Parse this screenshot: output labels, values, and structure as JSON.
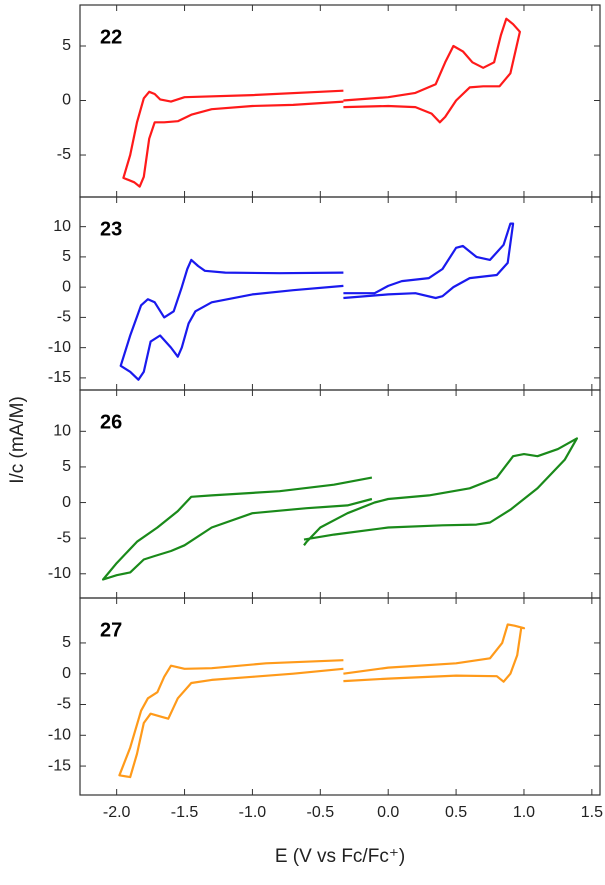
{
  "chart_data": [
    {
      "type": "line",
      "label": "22",
      "ylim": [
        -8.85,
        8.76
      ],
      "yticks": [
        -5,
        0,
        5
      ],
      "x": [
        -0.33,
        -0.7,
        -1.0,
        -1.3,
        -1.45,
        -1.55,
        -1.65,
        -1.72,
        -1.76,
        -1.8,
        -1.83,
        -1.87,
        -1.95,
        -1.9,
        -1.85,
        -1.8,
        -1.76,
        -1.72,
        -1.68,
        -1.6,
        -1.5,
        -1.0,
        -0.33,
        null,
        -0.33,
        0.0,
        0.2,
        0.35,
        0.42,
        0.48,
        0.55,
        0.62,
        0.7,
        0.78,
        0.83,
        0.87,
        0.92,
        0.97,
        0.9,
        0.82,
        0.7,
        0.6,
        0.5,
        0.42,
        0.38,
        0.32,
        0.2,
        0.0,
        -0.33
      ],
      "series": [
        {
          "color": "#ff1a1a",
          "values": [
            -0.1,
            -0.4,
            -0.5,
            -0.8,
            -1.3,
            -1.9,
            -2.0,
            -2.0,
            -3.5,
            -7.0,
            -7.9,
            -7.5,
            -7.1,
            -5.0,
            -2.0,
            0.2,
            0.8,
            0.6,
            0.1,
            -0.1,
            0.3,
            0.5,
            0.9,
            null,
            0.0,
            0.3,
            0.7,
            1.5,
            3.5,
            5.0,
            4.5,
            3.5,
            3.0,
            3.5,
            6.0,
            7.5,
            7.0,
            6.3,
            2.5,
            1.3,
            1.3,
            1.2,
            0.0,
            -1.5,
            -2.0,
            -1.2,
            -0.6,
            -0.5,
            -0.6
          ]
        }
      ]
    },
    {
      "type": "line",
      "label": "23",
      "ylim": [
        -17.0,
        14.9
      ],
      "yticks": [
        -15,
        -10,
        -5,
        0,
        5,
        10
      ],
      "x": [
        -0.33,
        -0.7,
        -1.0,
        -1.3,
        -1.42,
        -1.47,
        -1.52,
        -1.55,
        -1.6,
        -1.68,
        -1.75,
        -1.8,
        -1.84,
        -1.9,
        -1.97,
        -1.9,
        -1.82,
        -1.77,
        -1.72,
        -1.65,
        -1.58,
        -1.52,
        -1.48,
        -1.45,
        -1.4,
        -1.35,
        -1.2,
        -0.8,
        -0.33,
        null,
        -0.33,
        -0.1,
        0.0,
        0.1,
        0.3,
        0.4,
        0.5,
        0.55,
        0.65,
        0.75,
        0.85,
        0.9,
        0.92,
        0.88,
        0.8,
        0.6,
        0.48,
        0.4,
        0.35,
        0.2,
        0.0,
        -0.33
      ],
      "series": [
        {
          "color": "#1a1aee",
          "values": [
            0.2,
            -0.5,
            -1.2,
            -2.5,
            -4.0,
            -6.0,
            -10.0,
            -11.5,
            -10.0,
            -8.0,
            -9.0,
            -14.0,
            -15.3,
            -14.0,
            -13.0,
            -8.0,
            -3.0,
            -2.0,
            -2.5,
            -5.0,
            -4.0,
            0.0,
            3.0,
            4.5,
            3.5,
            2.7,
            2.4,
            2.3,
            2.4,
            null,
            -1.0,
            -1.0,
            0.2,
            1.0,
            1.5,
            3.0,
            6.5,
            6.8,
            5.0,
            4.5,
            7.0,
            10.5,
            10.5,
            4.0,
            2.0,
            1.5,
            0.0,
            -1.5,
            -1.8,
            -1.0,
            -1.2,
            -1.8
          ]
        }
      ]
    },
    {
      "type": "line",
      "label": "26",
      "ylim": [
        -13.4,
        15.8
      ],
      "yticks": [
        -10,
        -5,
        0,
        5,
        10
      ],
      "x": [
        -0.12,
        -0.3,
        -0.6,
        -1.0,
        -1.3,
        -1.5,
        -1.6,
        -1.72,
        -1.8,
        -1.9,
        -2.0,
        -2.1,
        -2.0,
        -1.85,
        -1.7,
        -1.55,
        -1.45,
        -1.3,
        -0.8,
        -0.4,
        -0.12,
        null,
        -0.62,
        -0.6,
        -0.5,
        -0.3,
        -0.1,
        0.0,
        0.3,
        0.6,
        0.8,
        0.92,
        1.0,
        1.1,
        1.25,
        1.39,
        1.3,
        1.1,
        0.9,
        0.75,
        0.65,
        0.4,
        0.0,
        -0.4,
        -0.62
      ],
      "series": [
        {
          "color": "#1a8a1a",
          "values": [
            0.5,
            -0.4,
            -0.8,
            -1.5,
            -3.5,
            -6.0,
            -6.8,
            -7.5,
            -8.0,
            -9.8,
            -10.2,
            -10.8,
            -8.5,
            -5.5,
            -3.5,
            -1.2,
            0.8,
            1.0,
            1.6,
            2.5,
            3.5,
            null,
            -6.0,
            -5.5,
            -3.5,
            -1.5,
            0.0,
            0.5,
            1.0,
            2.0,
            3.5,
            6.5,
            6.8,
            6.5,
            7.5,
            9.0,
            6.0,
            2.0,
            -1.0,
            -2.8,
            -3.1,
            -3.2,
            -3.5,
            -4.5,
            -5.2
          ]
        }
      ]
    },
    {
      "type": "line",
      "label": "27",
      "ylim": [
        -19.7,
        12.3
      ],
      "yticks": [
        -15,
        -10,
        -5,
        0,
        5
      ],
      "xlim": [
        -2.27,
        1.56
      ],
      "xticks": [
        {
          "value": -2,
          "label": "-2.0"
        },
        {
          "value": -1.5,
          "label": "-1.5"
        },
        {
          "value": -1,
          "label": "-1.0"
        },
        {
          "value": -0.5,
          "label": "-0.5"
        },
        {
          "value": 0,
          "label": "0.0"
        },
        0.5,
        {
          "value": 1,
          "label": "1.0"
        },
        1.5
      ],
      "xlabel": "E (V vs Fc/Fc⁺)",
      "ylabel": "I/c (mA/M)",
      "x": [
        -0.33,
        -0.7,
        -1.0,
        -1.3,
        -1.45,
        -1.55,
        -1.62,
        -1.67,
        -1.75,
        -1.8,
        -1.85,
        -1.9,
        -1.98,
        -1.9,
        -1.82,
        -1.77,
        -1.7,
        -1.65,
        -1.6,
        -1.5,
        -1.3,
        -0.9,
        -0.33,
        null,
        -0.33,
        0.0,
        0.5,
        0.8,
        0.85,
        0.9,
        0.95,
        0.98,
        1.0,
        0.93,
        0.88,
        0.84,
        0.75,
        0.5,
        0.0,
        -0.33
      ],
      "series": [
        {
          "color": "#ff9a1a",
          "values": [
            0.8,
            0.0,
            -0.5,
            -1.0,
            -1.5,
            -4.0,
            -7.3,
            -7.0,
            -6.5,
            -8.0,
            -13.0,
            -16.8,
            -16.5,
            -12.0,
            -6.0,
            -4.0,
            -3.0,
            -0.5,
            1.3,
            0.8,
            0.9,
            1.7,
            2.2,
            null,
            -1.2,
            -0.8,
            -0.3,
            -0.4,
            -1.3,
            0.0,
            3.0,
            7.5,
            7.4,
            7.8,
            8.0,
            5.0,
            2.5,
            1.7,
            1.0,
            0.0
          ]
        }
      ]
    }
  ]
}
